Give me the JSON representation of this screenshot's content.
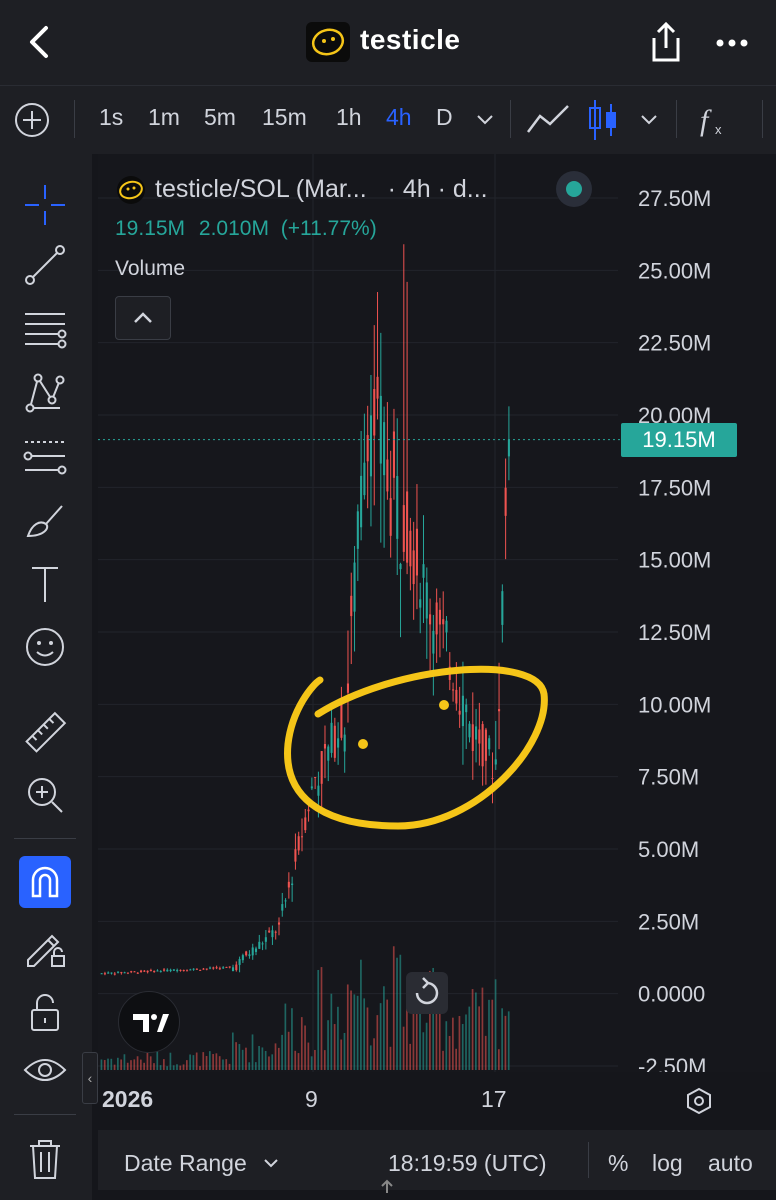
{
  "header": {
    "title": "testicle",
    "icons": [
      "back-chevron-icon",
      "coin-logo-icon",
      "share-icon",
      "more-icon"
    ]
  },
  "toolbar": {
    "intervals": [
      "1s",
      "1m",
      "5m",
      "15m",
      "1h",
      "4h",
      "D"
    ],
    "active_interval": "4h",
    "icons": [
      "add-icon",
      "interval-dropdown-icon",
      "line-chart-icon",
      "candles-icon",
      "chart-type-dropdown-icon",
      "indicators-fx-icon"
    ]
  },
  "leftbar": {
    "icons": [
      "crosshair-icon",
      "trend-line-icon",
      "fib-icon",
      "pattern-icon",
      "prediction-icon",
      "brush-icon",
      "text-icon",
      "emoji-icon",
      "ruler-icon",
      "zoom-in-icon",
      "magnet-icon",
      "lock-drawing-icon",
      "lock-icon",
      "eye-icon",
      "trash-icon"
    ]
  },
  "legend": {
    "symbol": "testicle/SOL (Mar...",
    "interval_text": "· 4h · d...",
    "last": "19.15M",
    "change": "2.010M",
    "change_pct": "(+11.77%)",
    "volume_label": "Volume"
  },
  "price_badge": "19.15M",
  "colors": {
    "up": "#26a69a",
    "down": "#ef5350",
    "annotation": "#f5c518",
    "active": "#2962ff"
  },
  "xaxis": {
    "labels": [
      "2026",
      "9",
      "17"
    ]
  },
  "bottombar": {
    "date_range": "Date Range",
    "time": "18:19:59 (UTC)",
    "percent": "%",
    "log": "log",
    "auto": "auto"
  },
  "chart_data": {
    "type": "candlestick",
    "title": "testicle/SOL",
    "interval": "4h",
    "ylim": [
      -2500000,
      27500000
    ],
    "y_ticks": [
      "27.50M",
      "25.00M",
      "22.50M",
      "20.00M",
      "17.50M",
      "15.00M",
      "12.50M",
      "10.00M",
      "7.50M",
      "5.00M",
      "2.50M",
      "0.0000",
      "-2.50M"
    ],
    "y_tick_values": [
      27500000,
      25000000,
      22500000,
      20000000,
      17500000,
      15000000,
      12500000,
      10000000,
      7500000,
      5000000,
      2500000,
      0,
      -2500000
    ],
    "last_price": 19150000,
    "segments": [
      {
        "n": 40,
        "from": 0.7,
        "to": 0.9,
        "vol": 0.3,
        "noise": 0.08
      },
      {
        "n": 14,
        "from": 0.9,
        "to": 2.2,
        "vol": 0.6,
        "noise": 0.4
      },
      {
        "n": 12,
        "from": 2.2,
        "to": 7.5,
        "vol": 1.2,
        "noise": 0.9
      },
      {
        "n": 8,
        "from": 7.5,
        "to": 9.5,
        "vol": 1.6,
        "noise": 1.6
      },
      {
        "n": 8,
        "from": 9.5,
        "to": 20.0,
        "vol": 2.2,
        "noise": 3.2
      },
      {
        "n": 10,
        "from": 20.0,
        "to": 16.5,
        "vol": 2.0,
        "noise": 4.5
      },
      {
        "n": 10,
        "from": 16.5,
        "to": 13.0,
        "vol": 1.6,
        "noise": 2.5
      },
      {
        "n": 12,
        "from": 13.0,
        "to": 9.0,
        "vol": 1.4,
        "noise": 2.0
      },
      {
        "n": 6,
        "from": 9.0,
        "to": 8.0,
        "vol": 1.3,
        "noise": 1.5
      },
      {
        "n": 5,
        "from": 8.0,
        "to": 19.15,
        "vol": 1.8,
        "noise": 2.8
      }
    ],
    "volume_scale_label": "Volume",
    "annotation": "hand-drawn yellow circle around the dip"
  }
}
